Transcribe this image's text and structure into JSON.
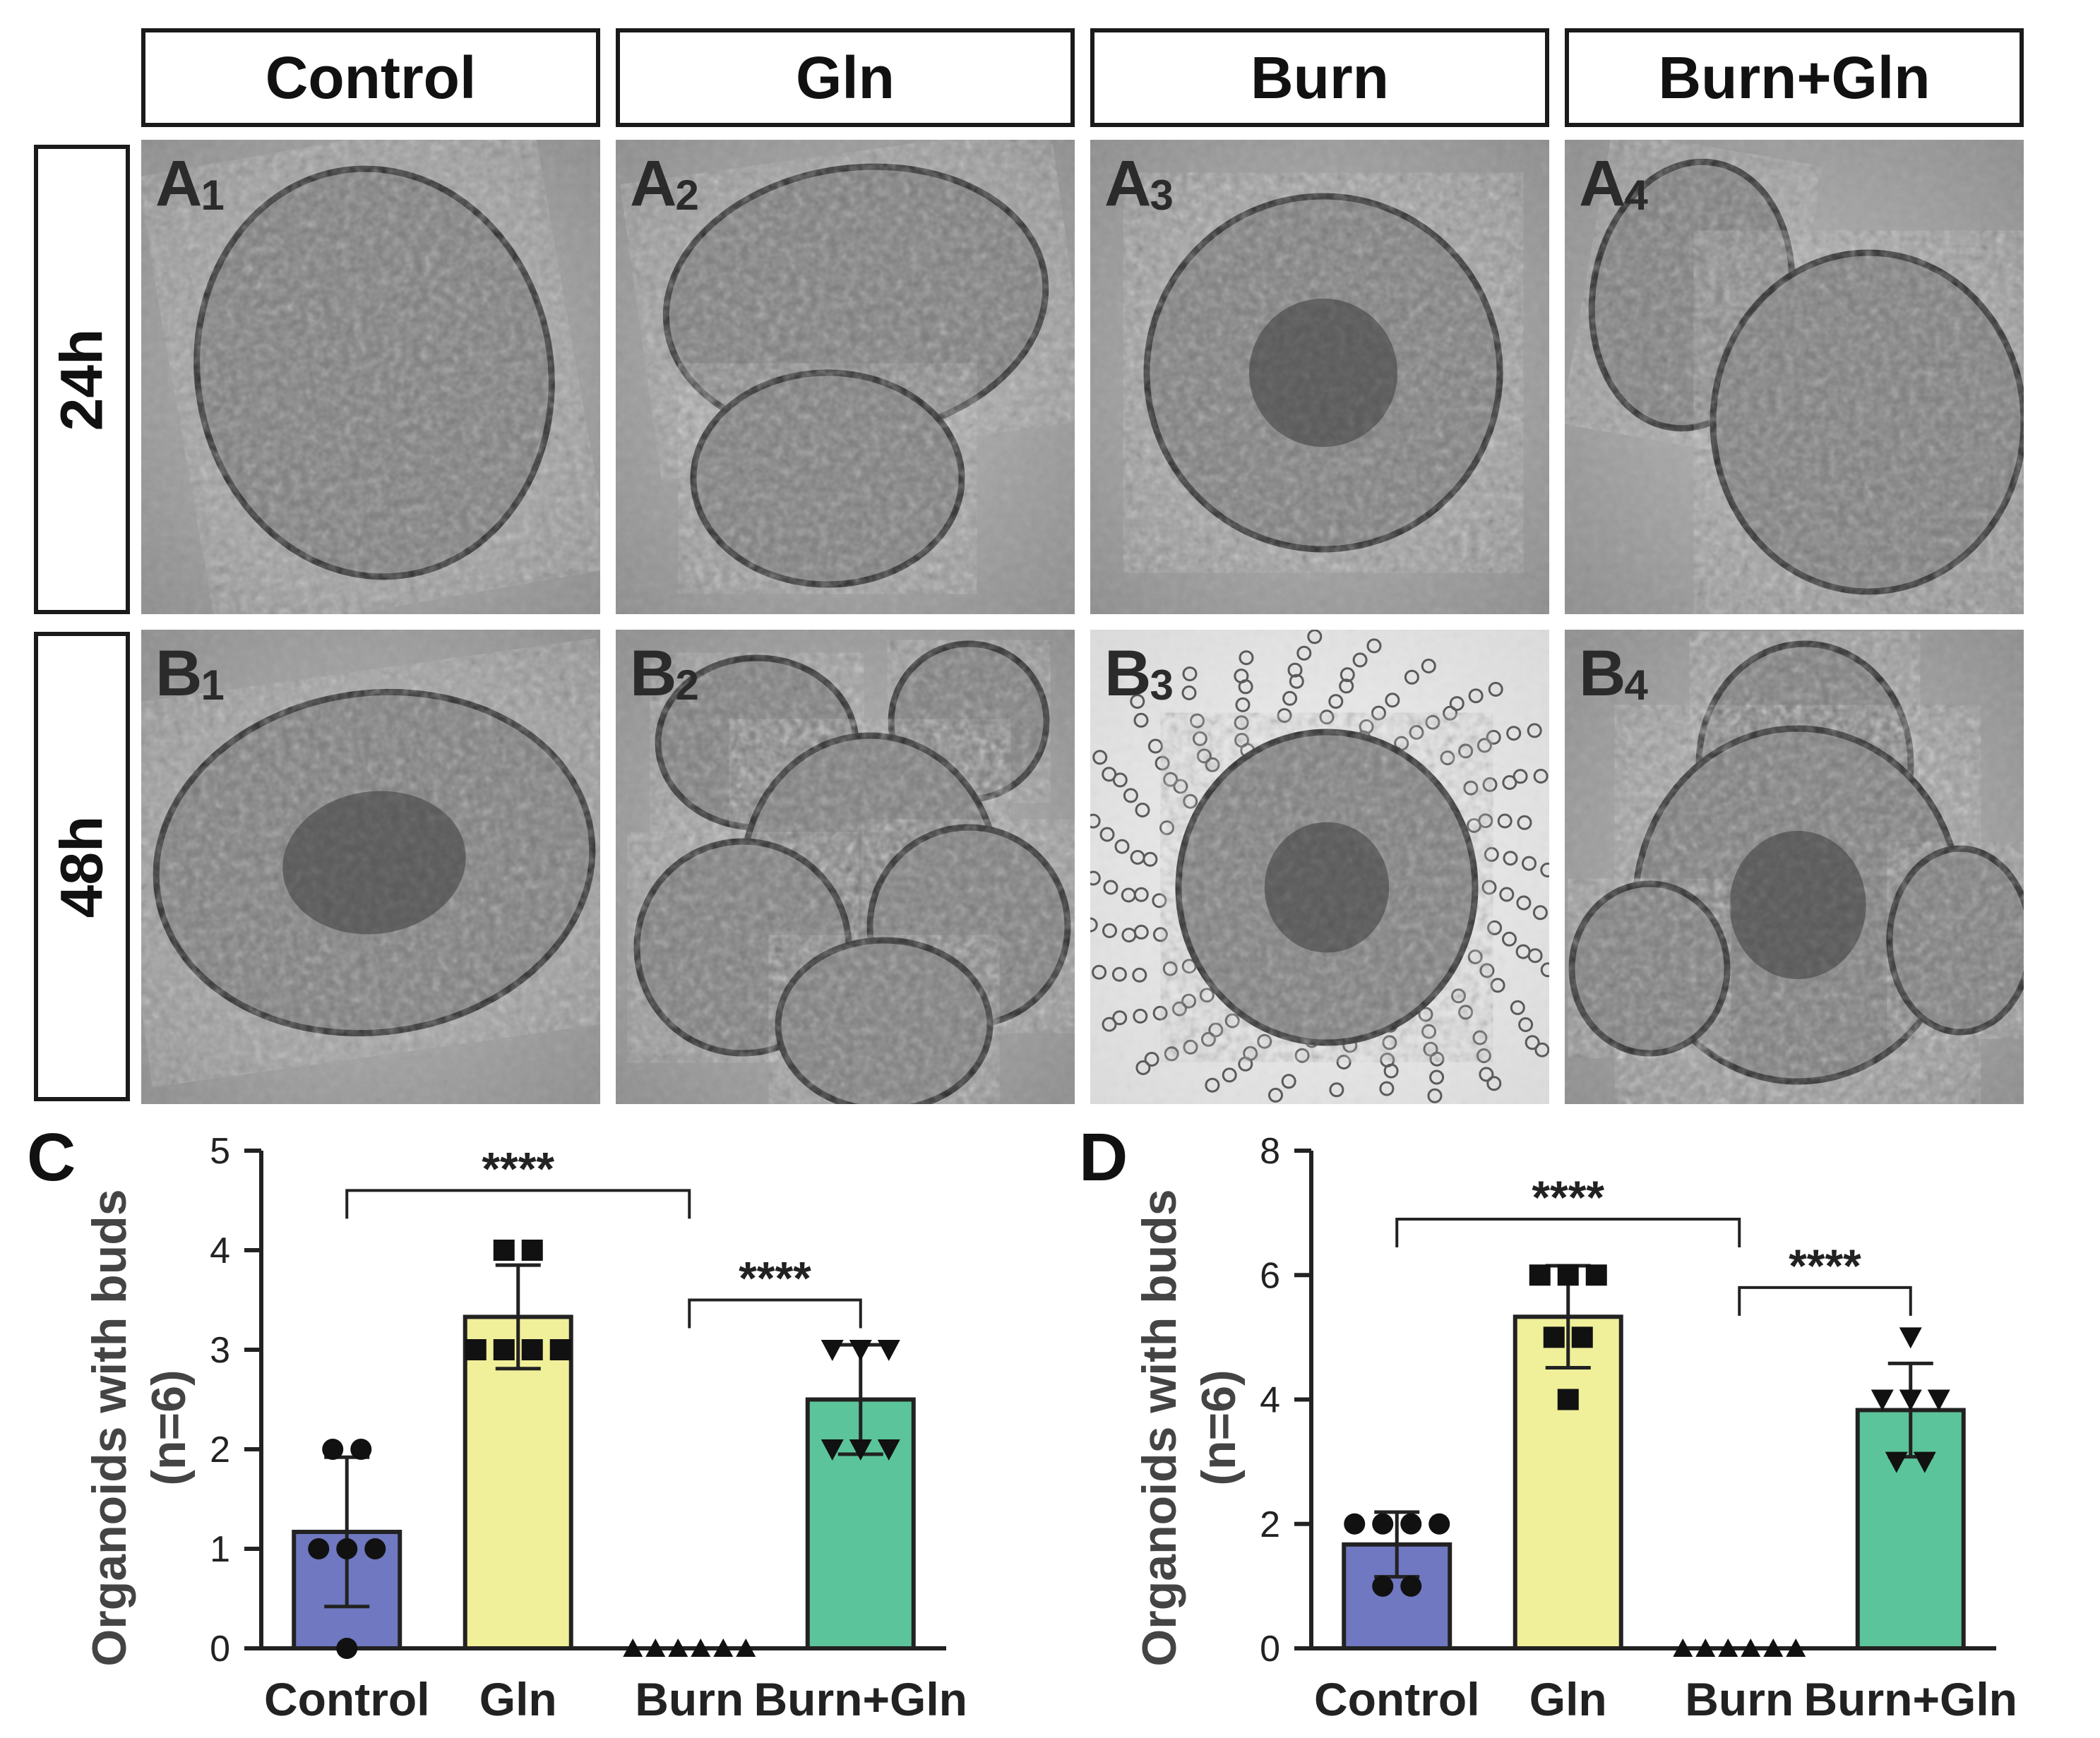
{
  "columns": [
    "Control",
    "Gln",
    "Burn",
    "Burn+Gln"
  ],
  "rows": [
    "24h",
    "48h"
  ],
  "panels": [
    {
      "id": "A1",
      "letter": "A",
      "sub": "1"
    },
    {
      "id": "A2",
      "letter": "A",
      "sub": "2"
    },
    {
      "id": "A3",
      "letter": "A",
      "sub": "3"
    },
    {
      "id": "A4",
      "letter": "A",
      "sub": "4"
    },
    {
      "id": "B1",
      "letter": "B",
      "sub": "1"
    },
    {
      "id": "B2",
      "letter": "B",
      "sub": "2"
    },
    {
      "id": "B3",
      "letter": "B",
      "sub": "3"
    },
    {
      "id": "B4",
      "letter": "B",
      "sub": "4"
    }
  ],
  "colors": {
    "Control": "#6f78c0",
    "Gln": "#f0ef9a",
    "Burn": "#9a9a9a",
    "Burn+Gln": "#5cc49a"
  },
  "chart_data": [
    {
      "panel": "C",
      "type": "bar",
      "title": "",
      "xlabel": "",
      "ylabel": "Organoids with buds",
      "ylabel2": "(n=6)",
      "categories": [
        "Control",
        "Gln",
        "Burn",
        "Burn+Gln"
      ],
      "ylim": [
        0,
        5
      ],
      "yticks": [
        "0",
        "1",
        "2",
        "3",
        "4",
        "5"
      ],
      "means": [
        1.17,
        3.33,
        0,
        2.5
      ],
      "sd": [
        0.75,
        0.52,
        0,
        0.55
      ],
      "points": [
        [
          2,
          2,
          1,
          1,
          1,
          0
        ],
        [
          4,
          4,
          3,
          3,
          3,
          3
        ],
        [
          0,
          0,
          0,
          0,
          0,
          0
        ],
        [
          3,
          3,
          2,
          2,
          2,
          3
        ]
      ],
      "markers": [
        "circle",
        "square",
        "triangle-up",
        "triangle-down"
      ],
      "significance": [
        {
          "from": "Control",
          "to": "Burn",
          "label": "****",
          "y": 4.6
        },
        {
          "from": "Burn",
          "to": "Burn+Gln",
          "label": "****",
          "y": 3.5
        }
      ]
    },
    {
      "panel": "D",
      "type": "bar",
      "title": "",
      "xlabel": "",
      "ylabel": "Organoids with buds",
      "ylabel2": "(n=6)",
      "categories": [
        "Control",
        "Gln",
        "Burn",
        "Burn+Gln"
      ],
      "ylim": [
        0,
        8
      ],
      "yticks": [
        "0",
        "2",
        "4",
        "6",
        "8"
      ],
      "means": [
        1.67,
        5.33,
        0,
        3.83
      ],
      "sd": [
        0.52,
        0.82,
        0,
        0.75
      ],
      "points": [
        [
          2,
          2,
          2,
          2,
          1,
          1
        ],
        [
          6,
          6,
          5,
          5,
          6,
          4
        ],
        [
          0,
          0,
          0,
          0,
          0,
          0
        ],
        [
          5,
          4,
          4,
          3,
          3,
          4
        ]
      ],
      "markers": [
        "circle",
        "square",
        "triangle-up",
        "triangle-down"
      ],
      "significance": [
        {
          "from": "Control",
          "to": "Burn",
          "label": "****",
          "y": 6.9
        },
        {
          "from": "Burn",
          "to": "Burn+Gln",
          "label": "****",
          "y": 5.8
        }
      ]
    }
  ]
}
